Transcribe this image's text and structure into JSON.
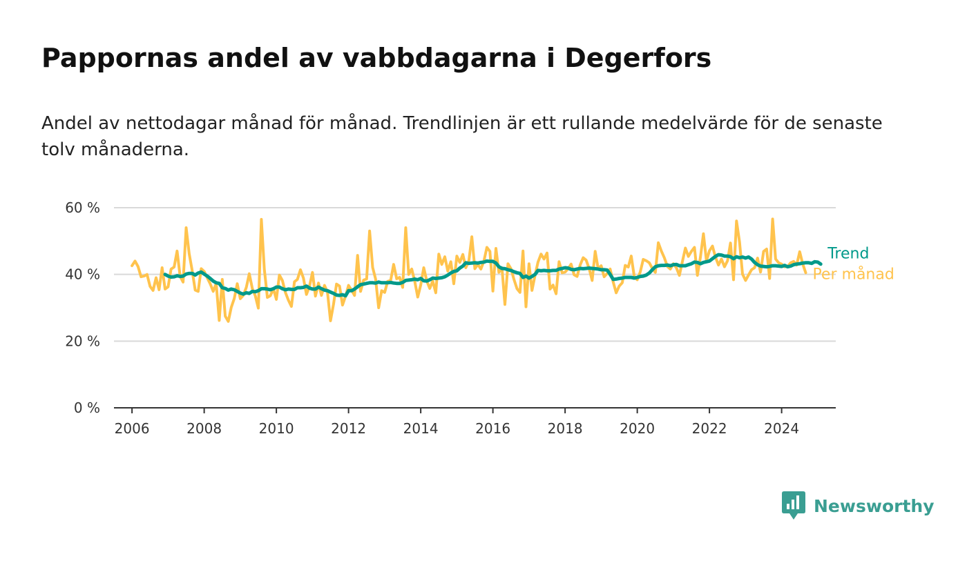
{
  "header": {
    "title": "Pappornas andel av vabbdagarna i Degerfors",
    "subtitle": "Andel av nettodagar månad för månad. Trendlinjen är ett rullande medelvärde för de senaste tolv månaderna."
  },
  "brand": {
    "name": "Newsworthy",
    "icon": "newsworthy-bar-chart-icon",
    "color": "#3a9e92"
  },
  "chart_data": {
    "type": "line",
    "xlabel": "",
    "ylabel": "",
    "ylim": [
      0,
      60
    ],
    "yticks": [
      0,
      20,
      40,
      60
    ],
    "ytick_labels": [
      "0 %",
      "20 %",
      "40 %",
      "60 %"
    ],
    "xlim": [
      2005.5,
      2025.5
    ],
    "xticks": [
      2006,
      2008,
      2010,
      2012,
      2014,
      2016,
      2018,
      2020,
      2022,
      2024
    ],
    "xtick_labels": [
      "2006",
      "2008",
      "2010",
      "2012",
      "2014",
      "2016",
      "2018",
      "2020",
      "2022",
      "2024"
    ],
    "grid": true,
    "legend": "inline-right",
    "series": [
      {
        "name": "Per månad",
        "color": "#ffc34d",
        "x_start": "2006-01",
        "frequency": "monthly",
        "values": [
          42.6,
          44.0,
          42.4,
          39.3,
          39.5,
          40.0,
          36.4,
          35.2,
          39.0,
          35.4,
          42.0,
          35.6,
          36.3,
          41.6,
          42.2,
          47.0,
          39.4,
          37.7,
          54.0,
          46.2,
          41.2,
          35.3,
          34.9,
          41.7,
          40.9,
          39.0,
          37.2,
          34.9,
          37.3,
          26.2,
          38.5,
          27.5,
          25.9,
          30.1,
          32.8,
          37.2,
          32.7,
          33.7,
          36.1,
          40.2,
          35.8,
          33.6,
          29.9,
          56.5,
          41.5,
          33.1,
          33.6,
          35.7,
          32.5,
          39.8,
          38.2,
          34.6,
          32.3,
          30.4,
          37.8,
          38.5,
          41.4,
          38.9,
          34.0,
          36.4,
          40.6,
          33.5,
          37.4,
          33.7,
          36.7,
          34.7,
          26.1,
          31.1,
          37.1,
          36.5,
          30.8,
          33.5,
          36.7,
          35.3,
          33.7,
          45.7,
          34.9,
          38.3,
          38.6,
          53.0,
          42.1,
          38.6,
          30.0,
          35.1,
          34.6,
          37.9,
          38.2,
          43.0,
          38.7,
          39.1,
          36.1,
          54.0,
          40.0,
          41.6,
          38.0,
          33.2,
          36.8,
          42.0,
          38.1,
          35.8,
          38.0,
          34.5,
          46.1,
          43.0,
          45.3,
          41.0,
          43.8,
          37.2,
          45.5,
          43.6,
          46.0,
          42.0,
          44.1,
          51.3,
          41.7,
          43.0,
          41.6,
          44.0,
          48.1,
          46.9,
          35.0,
          47.8,
          40.6,
          42.0,
          31.0,
          43.2,
          41.7,
          38.5,
          35.7,
          34.6,
          47.0,
          30.3,
          43.2,
          35.2,
          39.7,
          43.7,
          46.1,
          44.6,
          46.4,
          35.6,
          36.8,
          34.2,
          43.8,
          40.5,
          40.7,
          41.7,
          43.1,
          39.9,
          39.4,
          42.8,
          45.0,
          44.3,
          41.7,
          38.2,
          46.9,
          41.7,
          42.6,
          39.3,
          40.3,
          41.6,
          37.7,
          34.5,
          36.5,
          37.5,
          42.7,
          42.2,
          45.5,
          39.3,
          38.4,
          40.8,
          44.5,
          44.1,
          43.5,
          41.8,
          40.6,
          49.5,
          47.0,
          45.0,
          42.4,
          41.6,
          43.2,
          42.0,
          39.7,
          43.8,
          47.9,
          45.4,
          46.9,
          48.1,
          39.7,
          45.2,
          52.2,
          44.0,
          47.1,
          48.5,
          45.2,
          42.8,
          44.6,
          42.3,
          44.1,
          49.4,
          38.4,
          56.0,
          49.7,
          40.1,
          38.2,
          39.8,
          41.4,
          42.0,
          44.9,
          40.7,
          46.9,
          47.6,
          38.8,
          56.6,
          44.6,
          43.5,
          43.1,
          42.3,
          42.4,
          43.5,
          43.9,
          42.8,
          46.8,
          43.2,
          40.5
        ]
      },
      {
        "name": "Trend",
        "color": "#00998a",
        "x_start": "2006-12",
        "frequency": "monthly",
        "values": [
          40.0,
          39.5,
          39.2,
          39.3,
          39.6,
          39.4,
          39.5,
          40.1,
          40.3,
          40.3,
          39.8,
          40.4,
          40.7,
          40.1,
          39.5,
          38.8,
          38.0,
          37.5,
          37.3,
          36.0,
          35.8,
          35.3,
          35.6,
          35.4,
          34.9,
          34.4,
          34.1,
          34.5,
          34.3,
          34.9,
          34.8,
          35.1,
          35.7,
          35.7,
          35.6,
          35.4,
          35.7,
          36.2,
          36.2,
          35.7,
          35.4,
          35.6,
          35.5,
          35.5,
          36.0,
          36.0,
          36.1,
          36.5,
          35.9,
          35.6,
          35.6,
          36.2,
          35.7,
          35.3,
          35.1,
          34.7,
          34.3,
          33.8,
          33.7,
          33.9,
          33.6,
          35.1,
          35.1,
          35.6,
          36.3,
          36.9,
          37.1,
          37.3,
          37.5,
          37.5,
          37.4,
          37.7,
          37.5,
          37.5,
          37.5,
          37.6,
          37.4,
          37.3,
          37.3,
          37.6,
          38.2,
          38.3,
          38.4,
          38.6,
          38.4,
          38.8,
          38.1,
          38.0,
          38.4,
          38.9,
          38.8,
          38.9,
          39.0,
          39.3,
          39.8,
          40.4,
          40.9,
          41.1,
          41.9,
          42.5,
          43.5,
          43.3,
          43.4,
          43.5,
          43.4,
          43.6,
          43.7,
          44.0,
          43.9,
          43.9,
          43.4,
          42.3,
          41.8,
          41.7,
          41.4,
          41.2,
          40.8,
          40.5,
          40.3,
          39.1,
          39.5,
          38.9,
          39.4,
          40.0,
          41.2,
          41.1,
          41.2,
          41.1,
          41.1,
          41.2,
          41.2,
          41.6,
          41.8,
          42.0,
          41.9,
          41.5,
          41.4,
          41.6,
          41.8,
          41.7,
          41.8,
          41.9,
          41.8,
          41.7,
          41.6,
          41.4,
          41.4,
          41.3,
          40.0,
          38.5,
          38.6,
          38.8,
          38.9,
          39.1,
          39.1,
          39.1,
          38.9,
          39.1,
          39.4,
          39.5,
          39.8,
          40.4,
          41.4,
          42.3,
          42.6,
          42.7,
          42.7,
          42.8,
          42.6,
          42.9,
          43.0,
          42.6,
          42.6,
          42.6,
          42.9,
          43.2,
          43.7,
          43.6,
          43.2,
          43.6,
          43.8,
          44.0,
          44.7,
          45.4,
          45.9,
          45.8,
          45.5,
          45.5,
          45.3,
          44.7,
          45.3,
          45.0,
          45.2,
          44.9,
          45.2,
          44.6,
          43.6,
          42.9,
          42.5,
          42.4,
          42.3,
          42.4,
          42.6,
          42.6,
          42.5,
          42.4,
          42.7,
          42.3,
          42.5,
          42.9,
          43.1,
          43.2,
          43.4,
          43.5,
          43.5,
          43.3,
          43.8,
          43.7,
          43.1
        ]
      }
    ]
  }
}
